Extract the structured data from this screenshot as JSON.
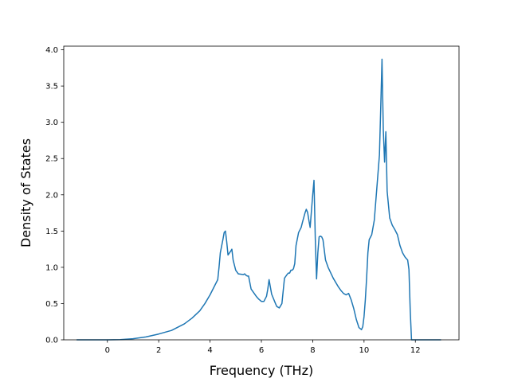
{
  "chart_data": {
    "type": "line",
    "title": "",
    "xlabel": "Frequency (THz)",
    "ylabel": "Density of States",
    "xlim": [
      -1.7,
      13.7
    ],
    "ylim": [
      0,
      4.05
    ],
    "xticks": [
      0,
      2,
      4,
      6,
      8,
      10,
      12
    ],
    "yticks": [
      0.0,
      0.5,
      1.0,
      1.5,
      2.0,
      2.5,
      3.0,
      3.5,
      4.0
    ],
    "xtick_labels": [
      "0",
      "2",
      "4",
      "6",
      "8",
      "10",
      "12"
    ],
    "ytick_labels": [
      "0.0",
      "0.5",
      "1.0",
      "1.5",
      "2.0",
      "2.5",
      "3.0",
      "3.5",
      "4.0"
    ],
    "grid": false,
    "line_color": "#1f77b4",
    "series": [
      {
        "x": [
          -1.2,
          -0.5,
          0.0,
          0.5,
          1.0,
          1.5,
          2.0,
          2.5,
          3.0,
          3.3,
          3.6,
          3.8,
          4.0,
          4.2,
          4.3,
          4.35,
          4.4,
          4.5,
          4.55,
          4.6,
          4.65,
          4.7,
          4.8,
          4.85,
          4.9,
          5.0,
          5.1,
          5.3,
          5.35,
          5.4,
          5.45,
          5.5,
          5.6,
          5.8,
          5.9,
          6.0,
          6.1,
          6.2,
          6.25,
          6.3,
          6.4,
          6.55,
          6.6,
          6.7,
          6.8,
          6.9,
          7.0,
          7.05,
          7.1,
          7.15,
          7.2,
          7.25,
          7.3,
          7.35,
          7.45,
          7.55,
          7.6,
          7.7,
          7.75,
          7.8,
          7.85,
          7.9,
          8.0,
          8.05,
          8.1,
          8.15,
          8.2,
          8.25,
          8.3,
          8.35,
          8.4,
          8.5,
          8.6,
          8.8,
          9.0,
          9.1,
          9.2,
          9.3,
          9.4,
          9.5,
          9.6,
          9.7,
          9.8,
          9.9,
          9.95,
          10.0,
          10.05,
          10.1,
          10.15,
          10.2,
          10.3,
          10.4,
          10.5,
          10.6,
          10.65,
          10.7,
          10.75,
          10.8,
          10.85,
          10.9,
          11.0,
          11.1,
          11.2,
          11.3,
          11.4,
          11.5,
          11.6,
          11.7,
          11.75,
          11.8,
          11.85,
          12.0,
          13.0
        ],
        "y": [
          0,
          0,
          0,
          0.003,
          0.015,
          0.04,
          0.08,
          0.13,
          0.22,
          0.3,
          0.4,
          0.5,
          0.62,
          0.76,
          0.83,
          1.0,
          1.2,
          1.38,
          1.48,
          1.5,
          1.35,
          1.17,
          1.22,
          1.25,
          1.1,
          0.96,
          0.91,
          0.9,
          0.91,
          0.89,
          0.88,
          0.88,
          0.7,
          0.6,
          0.56,
          0.53,
          0.53,
          0.6,
          0.7,
          0.83,
          0.63,
          0.5,
          0.46,
          0.44,
          0.5,
          0.85,
          0.9,
          0.92,
          0.92,
          0.96,
          0.96,
          0.98,
          1.05,
          1.3,
          1.48,
          1.55,
          1.62,
          1.75,
          1.8,
          1.76,
          1.65,
          1.55,
          2.0,
          2.2,
          1.4,
          0.84,
          1.2,
          1.42,
          1.43,
          1.42,
          1.38,
          1.1,
          1.0,
          0.85,
          0.73,
          0.68,
          0.64,
          0.62,
          0.64,
          0.55,
          0.43,
          0.28,
          0.17,
          0.14,
          0.18,
          0.32,
          0.55,
          0.85,
          1.2,
          1.38,
          1.45,
          1.65,
          2.1,
          2.55,
          3.2,
          3.87,
          2.9,
          2.45,
          2.87,
          2.05,
          1.68,
          1.58,
          1.52,
          1.45,
          1.3,
          1.2,
          1.14,
          1.1,
          0.97,
          0.4,
          0.0,
          0,
          0
        ]
      }
    ]
  }
}
